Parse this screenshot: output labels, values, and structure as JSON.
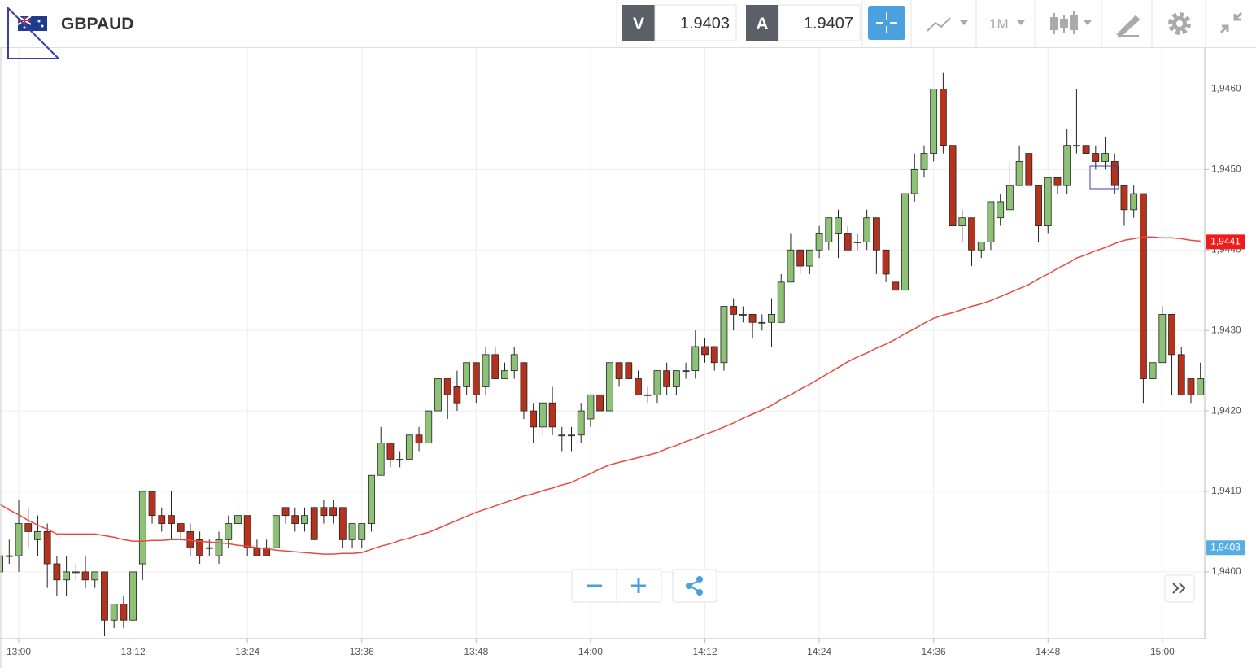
{
  "header": {
    "symbol": "GBPAUD",
    "sell_label": "V",
    "sell_price": 1.9403,
    "buy_label": "A",
    "buy_price": 1.9407,
    "timeframe": "1M"
  },
  "chart_data": {
    "type": "candlestick",
    "categories": [
      null,
      null,
      "13:00",
      null,
      null,
      null,
      null,
      null,
      null,
      null,
      null,
      null,
      null,
      null,
      "13:12",
      null,
      null,
      null,
      null,
      null,
      null,
      null,
      null,
      null,
      null,
      null,
      "13:24",
      null,
      null,
      null,
      null,
      null,
      null,
      null,
      null,
      null,
      null,
      null,
      "13:36",
      null,
      null,
      null,
      null,
      null,
      null,
      null,
      null,
      null,
      null,
      null,
      "13:48",
      null,
      null,
      null,
      null,
      null,
      null,
      null,
      null,
      null,
      null,
      null,
      "14:00",
      null,
      null,
      null,
      null,
      null,
      null,
      null,
      null,
      null,
      null,
      null,
      "14:12",
      null,
      null,
      null,
      null,
      null,
      null,
      null,
      null,
      null,
      null,
      null,
      "14:24",
      null,
      null,
      null,
      null,
      null,
      null,
      null,
      null,
      null,
      null,
      null,
      "14:36",
      null,
      null,
      null,
      null,
      null,
      null,
      null,
      null,
      null,
      null,
      null,
      "14:48",
      null,
      null,
      null,
      null,
      null,
      null,
      null,
      null,
      null,
      null,
      null,
      "15:00",
      null,
      null,
      null,
      null
    ],
    "open": [
      1.94,
      1.9402,
      1.9402,
      1.9406,
      1.9404,
      1.9405,
      1.9401,
      1.9399,
      1.94,
      1.94,
      1.9399,
      1.94,
      1.9394,
      1.9396,
      1.9394,
      1.9401,
      1.941,
      1.9407,
      1.9407,
      1.9406,
      1.9405,
      1.9404,
      1.9403,
      1.9402,
      1.9404,
      1.9406,
      1.9407,
      1.9403,
      1.9403,
      1.9403,
      1.9408,
      1.9407,
      1.9406,
      1.9408,
      1.9408,
      1.9408,
      1.9408,
      1.9404,
      1.9404,
      1.9406,
      1.9412,
      1.9416,
      1.9414,
      1.9414,
      1.9417,
      1.9416,
      1.942,
      1.9424,
      1.9423,
      1.9423,
      1.9426,
      1.9423,
      1.9427,
      1.9424,
      1.9425,
      1.9426,
      1.942,
      1.9418,
      1.9421,
      1.9417,
      1.9417,
      1.9417,
      1.9419,
      1.9422,
      1.942,
      1.9426,
      1.9426,
      1.9424,
      1.9422,
      1.9422,
      1.9425,
      1.9423,
      1.9425,
      1.9425,
      1.9428,
      1.9428,
      1.9426,
      1.9433,
      1.9432,
      1.9432,
      1.9431,
      1.9431,
      1.9431,
      1.9436,
      1.944,
      1.9438,
      1.944,
      1.9441,
      1.9442,
      1.9442,
      1.9441,
      1.9441,
      1.9444,
      1.944,
      1.9436,
      1.9435,
      1.9447,
      1.945,
      1.9452,
      1.946,
      1.9453,
      1.9443,
      1.9444,
      1.944,
      1.9441,
      1.9444,
      1.9445,
      1.9448,
      1.9452,
      1.9448,
      1.9443,
      1.9449,
      1.9448,
      1.9453,
      1.9453,
      1.9452,
      1.9451,
      1.9451,
      1.9448,
      1.9445,
      1.9447,
      1.9424,
      1.9426,
      1.9432,
      1.9427,
      1.9424,
      1.9422
    ],
    "high": [
      1.9402,
      1.9404,
      1.9409,
      1.9408,
      1.9407,
      1.9406,
      1.9402,
      1.9402,
      1.9401,
      1.9402,
      1.94,
      1.94,
      1.9396,
      1.9397,
      1.94,
      1.941,
      1.941,
      1.9408,
      1.941,
      1.9406,
      1.9406,
      1.9405,
      1.9404,
      1.9405,
      1.9407,
      1.9409,
      1.9407,
      1.9404,
      1.9404,
      1.9407,
      1.9408,
      1.9408,
      1.9408,
      1.9408,
      1.9409,
      1.9409,
      1.9408,
      1.9406,
      1.9406,
      1.9412,
      1.9418,
      1.9416,
      1.9415,
      1.9417,
      1.9418,
      1.942,
      1.9424,
      1.9424,
      1.9425,
      1.9426,
      1.9426,
      1.9428,
      1.9428,
      1.9426,
      1.9428,
      1.9426,
      1.9421,
      1.9421,
      1.9423,
      1.9418,
      1.9418,
      1.9421,
      1.9422,
      1.9422,
      1.9426,
      1.9426,
      1.9426,
      1.9425,
      1.9423,
      1.9425,
      1.9426,
      1.9425,
      1.9426,
      1.943,
      1.9429,
      1.9428,
      1.9433,
      1.9434,
      1.9433,
      1.9432,
      1.9432,
      1.9434,
      1.9437,
      1.9442,
      1.944,
      1.944,
      1.9443,
      1.9444,
      1.9445,
      1.9443,
      1.9442,
      1.9445,
      1.9444,
      1.944,
      1.9436,
      1.9447,
      1.9452,
      1.9453,
      1.946,
      1.9462,
      1.9453,
      1.9445,
      1.9444,
      1.9441,
      1.9446,
      1.9447,
      1.9451,
      1.9453,
      1.9452,
      1.9448,
      1.9449,
      1.9449,
      1.9455,
      1.946,
      1.9453,
      1.9453,
      1.9454,
      1.9452,
      1.9448,
      1.9448,
      1.9447,
      1.9426,
      1.9433,
      1.9432,
      1.9428,
      1.9424,
      1.9426
    ],
    "low": [
      1.94,
      1.9401,
      1.94,
      1.9403,
      1.9402,
      1.9398,
      1.9397,
      1.9397,
      1.9399,
      1.9398,
      1.9398,
      1.9392,
      1.9393,
      1.9393,
      1.9394,
      1.9399,
      1.9406,
      1.9405,
      1.9404,
      1.9404,
      1.9402,
      1.9401,
      1.9402,
      1.9401,
      1.9403,
      1.9405,
      1.9402,
      1.9402,
      1.9402,
      1.9403,
      1.9406,
      1.9405,
      1.9405,
      1.9404,
      1.9406,
      1.9406,
      1.9403,
      1.9403,
      1.9403,
      1.9405,
      1.9412,
      1.9413,
      1.9413,
      1.9414,
      1.9415,
      1.9416,
      1.9418,
      1.9419,
      1.942,
      1.9422,
      1.9421,
      1.9422,
      1.9424,
      1.9424,
      1.9424,
      1.9419,
      1.9416,
      1.9417,
      1.9417,
      1.9415,
      1.9415,
      1.9416,
      1.9418,
      1.942,
      1.942,
      1.9423,
      1.9424,
      1.9422,
      1.9421,
      1.9421,
      1.9422,
      1.9422,
      1.9424,
      1.9424,
      1.9426,
      1.9425,
      1.9425,
      1.943,
      1.9431,
      1.9429,
      1.943,
      1.9428,
      1.9431,
      1.9436,
      1.9437,
      1.9437,
      1.9439,
      1.944,
      1.9439,
      1.944,
      1.944,
      1.944,
      1.9437,
      1.9436,
      1.9435,
      1.9435,
      1.9446,
      1.9449,
      1.9451,
      1.9452,
      1.9443,
      1.9441,
      1.9438,
      1.9439,
      1.944,
      1.9443,
      1.9445,
      1.9448,
      1.9448,
      1.9441,
      1.9442,
      1.9447,
      1.9447,
      1.9452,
      1.9452,
      1.945,
      1.945,
      1.9447,
      1.9443,
      1.9444,
      1.9421,
      1.9424,
      1.9426,
      1.9422,
      1.9422,
      1.9421,
      1.9422
    ],
    "close": [
      1.9402,
      1.9402,
      1.9406,
      1.9405,
      1.9405,
      1.9401,
      1.9399,
      1.94,
      1.94,
      1.9399,
      1.94,
      1.9394,
      1.9396,
      1.9394,
      1.94,
      1.941,
      1.9407,
      1.9406,
      1.9406,
      1.9405,
      1.9403,
      1.9402,
      1.9403,
      1.9404,
      1.9406,
      1.9407,
      1.9403,
      1.9402,
      1.9402,
      1.9407,
      1.9407,
      1.9406,
      1.9407,
      1.9404,
      1.9407,
      1.9407,
      1.9404,
      1.9406,
      1.9406,
      1.9412,
      1.9416,
      1.9414,
      1.9414,
      1.9417,
      1.9416,
      1.942,
      1.9424,
      1.9422,
      1.9421,
      1.9426,
      1.9422,
      1.9427,
      1.9424,
      1.9425,
      1.9427,
      1.942,
      1.9418,
      1.9421,
      1.9418,
      1.9417,
      1.9417,
      1.942,
      1.9422,
      1.942,
      1.9426,
      1.9424,
      1.9424,
      1.9422,
      1.9422,
      1.9425,
      1.9423,
      1.9425,
      1.9425,
      1.9428,
      1.9427,
      1.9426,
      1.9433,
      1.9432,
      1.9432,
      1.9431,
      1.9431,
      1.9432,
      1.9436,
      1.944,
      1.9438,
      1.944,
      1.9442,
      1.9444,
      1.9444,
      1.944,
      1.9441,
      1.9444,
      1.944,
      1.9437,
      1.9435,
      1.9447,
      1.945,
      1.9452,
      1.946,
      1.9453,
      1.9443,
      1.9444,
      1.944,
      1.9441,
      1.9446,
      1.9446,
      1.9448,
      1.9451,
      1.9448,
      1.9443,
      1.9449,
      1.9448,
      1.9453,
      1.9453,
      1.9452,
      1.9451,
      1.9452,
      1.9448,
      1.9445,
      1.9447,
      1.9424,
      1.9426,
      1.9432,
      1.9427,
      1.9422,
      1.9422,
      1.9424
    ],
    "up_color": "#8cc176",
    "down_color": "#b5331c",
    "line": {
      "color": "#e84a3f",
      "values": [
        1.94084,
        1.94077,
        1.94071,
        1.94064,
        1.94058,
        1.94053,
        1.94047,
        1.94047,
        1.94047,
        1.94047,
        1.94047,
        1.94045,
        1.94043,
        1.9404,
        1.94038,
        1.94038,
        1.94039,
        1.94039,
        1.9404,
        1.9404,
        1.94039,
        1.94038,
        1.94037,
        1.94036,
        1.94035,
        1.94033,
        1.94032,
        1.9403,
        1.94029,
        1.94027,
        1.94026,
        1.94025,
        1.94024,
        1.94023,
        1.94022,
        1.94022,
        1.94023,
        1.94023,
        1.94024,
        1.94028,
        1.94032,
        1.94035,
        1.94039,
        1.94042,
        1.94046,
        1.94049,
        1.94054,
        1.94059,
        1.94064,
        1.94069,
        1.94074,
        1.94078,
        1.94082,
        1.94086,
        1.9409,
        1.94094,
        1.94097,
        1.94101,
        1.94104,
        1.94108,
        1.94111,
        1.94117,
        1.94122,
        1.94128,
        1.94133,
        1.94136,
        1.94139,
        1.94142,
        1.94145,
        1.94148,
        1.94153,
        1.94157,
        1.94162,
        1.94166,
        1.94171,
        1.94175,
        1.9418,
        1.94185,
        1.94191,
        1.94196,
        1.94201,
        1.94207,
        1.94214,
        1.9422,
        1.94227,
        1.94233,
        1.9424,
        1.94247,
        1.94254,
        1.94261,
        1.94267,
        1.94272,
        1.94278,
        1.94283,
        1.94289,
        1.94296,
        1.94302,
        1.94309,
        1.94315,
        1.94319,
        1.94322,
        1.94326,
        1.9433,
        1.94333,
        1.94337,
        1.94342,
        1.94347,
        1.94352,
        1.94357,
        1.94364,
        1.9437,
        1.94377,
        1.94383,
        1.9439,
        1.94394,
        1.94399,
        1.94403,
        1.94408,
        1.94412,
        1.94414,
        1.94416,
        1.94416,
        1.94415,
        1.94415,
        1.94414,
        1.94412,
        1.94411
      ]
    },
    "ylim": [
      1.93917,
      1.94651
    ],
    "yticks": [
      {
        "value": 1.94,
        "label": "1,9400"
      },
      {
        "value": 1.941,
        "label": "1,9410"
      },
      {
        "value": 1.942,
        "label": "1,9420"
      },
      {
        "value": 1.943,
        "label": "1,9430"
      },
      {
        "value": 1.944,
        "label": "1,9440"
      },
      {
        "value": 1.945,
        "label": "1,9450"
      },
      {
        "value": 1.946,
        "label": "1,9460"
      }
    ],
    "grid": true,
    "price_labels": [
      {
        "value": 1.9441,
        "label": "1,9441",
        "color": "#ee1c1c"
      },
      {
        "value": 1.9403,
        "label": "1,9403",
        "color": "#56aee0"
      }
    ]
  }
}
